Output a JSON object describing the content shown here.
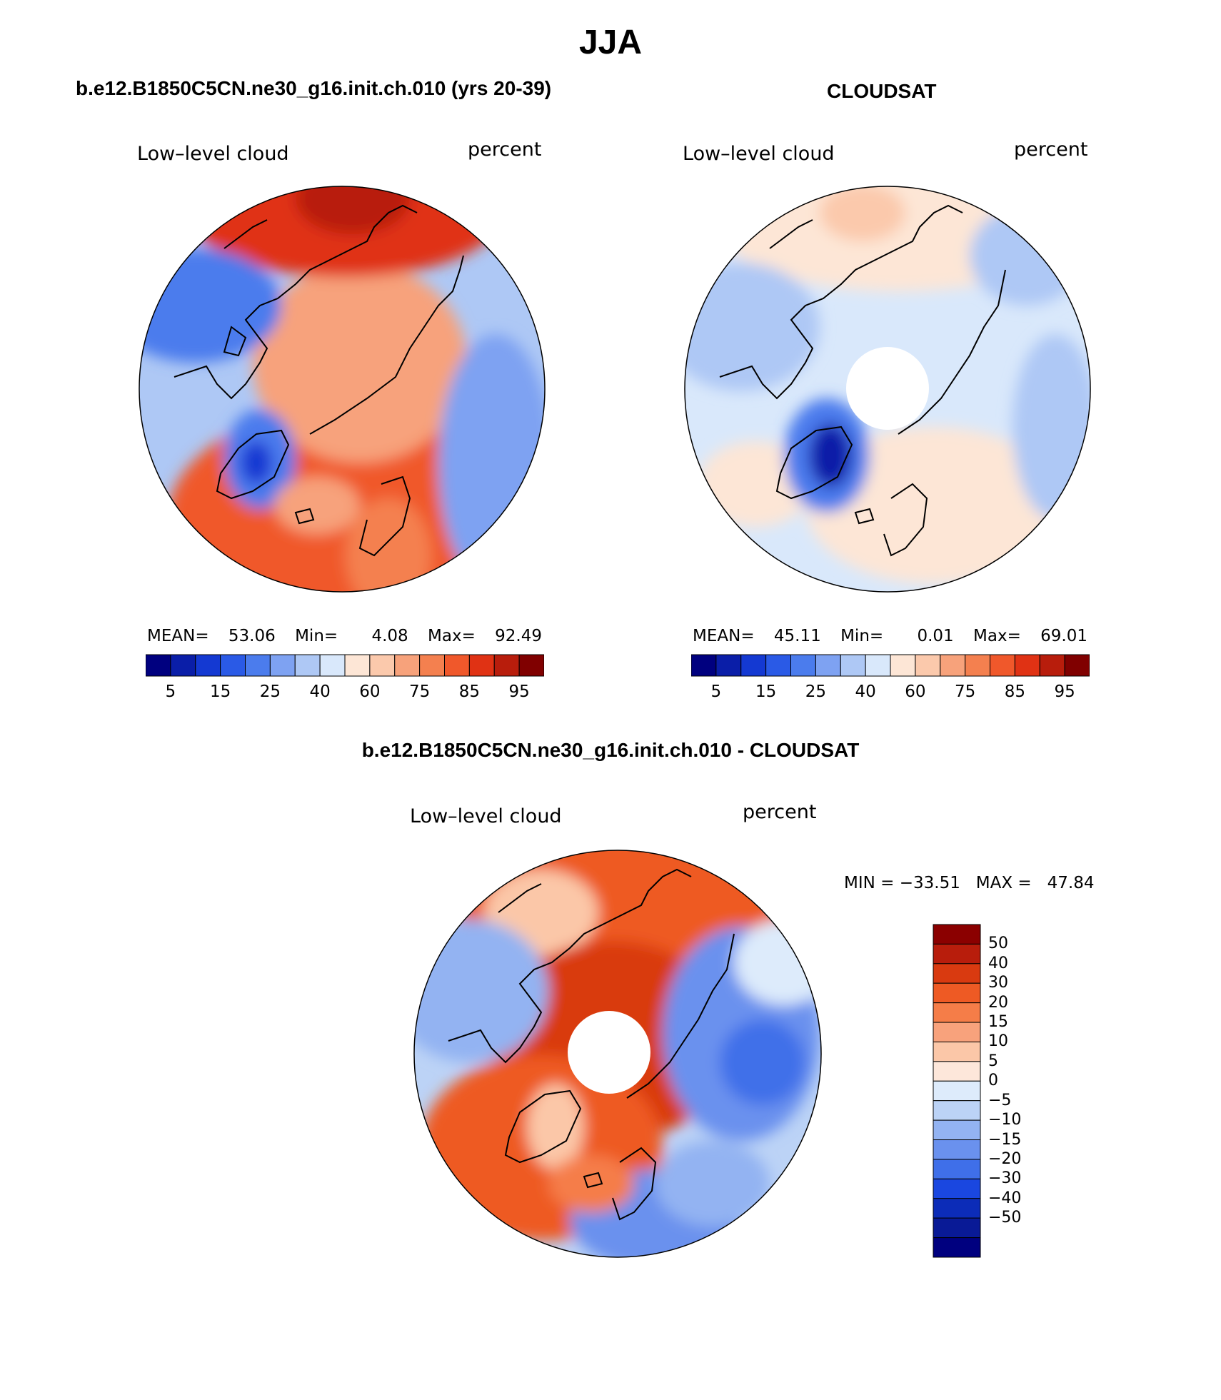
{
  "page_title": "JJA",
  "panels": [
    {
      "title": "b.e12.B1850C5CN.ne30_g16.init.ch.010 (yrs 20-39)",
      "left_label": "Low–level cloud",
      "right_label": "percent",
      "stats": {
        "mean_label": "MEAN=",
        "mean": "53.06",
        "min_label": "Min=",
        "min": "4.08",
        "max_label": "Max=",
        "max": "92.49"
      }
    },
    {
      "title": "CLOUDSAT",
      "left_label": "Low–level cloud",
      "right_label": "percent",
      "stats": {
        "mean_label": "MEAN=",
        "mean": "45.11",
        "min_label": "Min=",
        "min": "0.01",
        "max_label": "Max=",
        "max": "69.01"
      }
    },
    {
      "title": "b.e12.B1850C5CN.ne30_g16.init.ch.010 - CLOUDSAT",
      "left_label": "Low–level cloud",
      "right_label": "percent",
      "stats_text": "MIN = −33.51   MAX =   47.84"
    }
  ],
  "horizontal_colorbar": {
    "colors": [
      "#00007f",
      "#0a1ea8",
      "#1439d2",
      "#2a5ae6",
      "#4b7ced",
      "#7ea2f2",
      "#aec8f5",
      "#d9e8fb",
      "#fde6d6",
      "#fbc9ac",
      "#f7a27b",
      "#f4804f",
      "#f0582b",
      "#e03214",
      "#b81d0c",
      "#800000"
    ],
    "tick_labels": [
      "5",
      "15",
      "25",
      "40",
      "60",
      "75",
      "85",
      "95"
    ]
  },
  "vertical_colorbar": {
    "colors_top_to_bottom": [
      "#8b0000",
      "#b81d0c",
      "#d93a10",
      "#ee5a24",
      "#f57d48",
      "#f8a27c",
      "#fbc7a8",
      "#fde7da",
      "#ddebfb",
      "#bcd3f6",
      "#93b3f2",
      "#6a91ee",
      "#3f6fe9",
      "#1a47e0",
      "#0c2cb8",
      "#091a96",
      "#00007f"
    ],
    "tick_labels": [
      "50",
      "40",
      "30",
      "20",
      "15",
      "10",
      "5",
      "0",
      "−5",
      "−10",
      "−15",
      "−20",
      "−30",
      "−40",
      "−50"
    ]
  }
}
